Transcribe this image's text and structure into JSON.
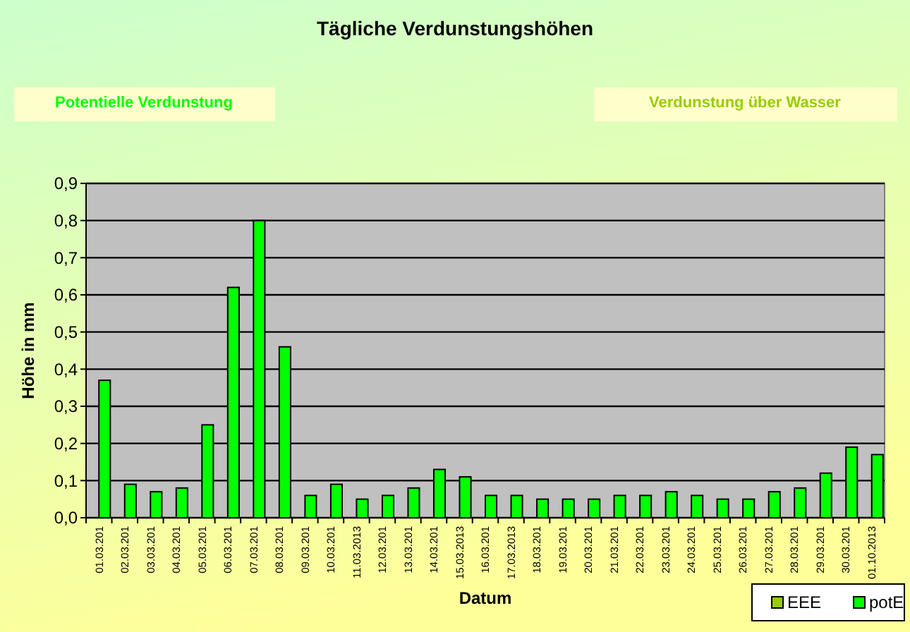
{
  "chart_data": {
    "type": "bar",
    "title": "Tägliche Verdunstungshöhen",
    "xlabel": "Datum",
    "ylabel": "Höhe in mm",
    "annotations": [
      "Potentielle Verdunstung",
      "Verdunstung über Wasser"
    ],
    "categories": [
      "01.03.201",
      "02.03.201",
      "03.03.201",
      "04.03.201",
      "05.03.201",
      "06.03.201",
      "07.03.201",
      "08.03.201",
      "09.03.201",
      "10.03.201",
      "11.03.2013",
      "12.03.201",
      "13.03.201",
      "14.03.201",
      "15.03.2013",
      "16.03.201",
      "17.03.2013",
      "18.03.201",
      "19.03.201",
      "20.03.201",
      "21.03.201",
      "22.03.201",
      "23.03.201",
      "24.03.201",
      "25.03.201",
      "26.03.201",
      "27.03.201",
      "28.03.201",
      "29.03.201",
      "30.03.201",
      "01.10.2013"
    ],
    "series": [
      {
        "name": "EEE",
        "color": "#99cc00",
        "values": [
          null,
          null,
          null,
          null,
          null,
          null,
          null,
          null,
          null,
          null,
          null,
          null,
          null,
          null,
          null,
          null,
          null,
          null,
          null,
          null,
          null,
          null,
          null,
          null,
          null,
          null,
          null,
          null,
          null,
          null,
          null
        ]
      },
      {
        "name": "potE",
        "color": "#00ff00",
        "values": [
          0.37,
          0.09,
          0.07,
          0.08,
          0.25,
          0.62,
          0.8,
          0.46,
          0.06,
          0.09,
          0.05,
          0.06,
          0.08,
          0.13,
          0.11,
          0.06,
          0.06,
          0.05,
          0.05,
          0.05,
          0.06,
          0.06,
          0.07,
          0.06,
          0.05,
          0.05,
          0.07,
          0.08,
          0.12,
          0.19,
          0.17
        ]
      }
    ],
    "ylim": [
      0,
      0.9
    ],
    "yticks": [
      {
        "value": 0,
        "label": "0,0"
      },
      {
        "value": 0.1,
        "label": "0,1"
      },
      {
        "value": 0.2,
        "label": "0,2"
      },
      {
        "value": 0.3,
        "label": "0,3"
      },
      {
        "value": 0.4,
        "label": "0,4"
      },
      {
        "value": 0.5,
        "label": "0,5"
      },
      {
        "value": 0.6,
        "label": "0,6"
      },
      {
        "value": 0.7,
        "label": "0,7"
      },
      {
        "value": 0.8,
        "label": "0,8"
      },
      {
        "value": 0.9,
        "label": "0,9"
      }
    ],
    "grid": "y",
    "legend": "bottom right"
  }
}
